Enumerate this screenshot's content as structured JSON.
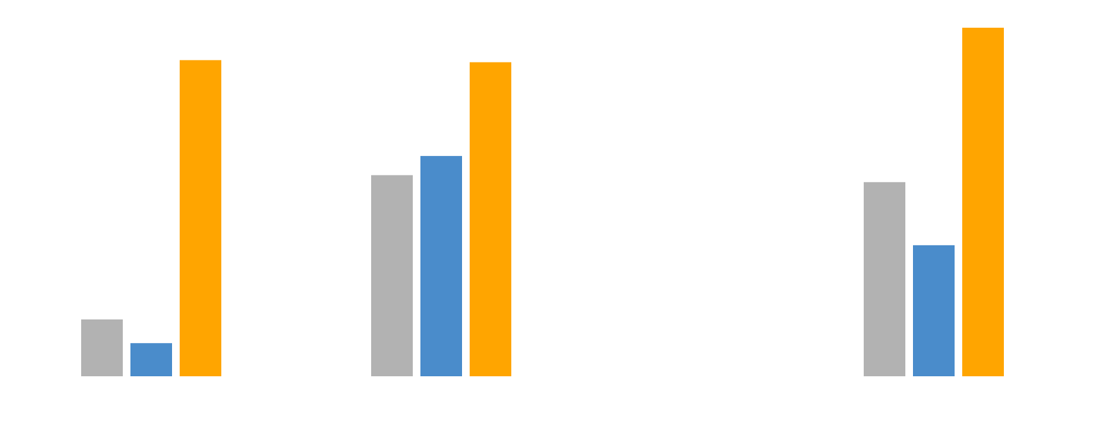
{
  "chart_data": {
    "type": "bar",
    "categories": [
      null,
      null,
      null
    ],
    "series": [
      {
        "color": "#b2b2b2",
        "values": [
          16.3,
          57.7,
          55.7
        ]
      },
      {
        "color": "#4a8ccb",
        "values": [
          9.5,
          63.2,
          37.6
        ]
      },
      {
        "color": "#ffa500",
        "values": [
          90.7,
          90.1,
          100
        ]
      }
    ],
    "ylim": [
      0,
      100
    ]
  }
}
